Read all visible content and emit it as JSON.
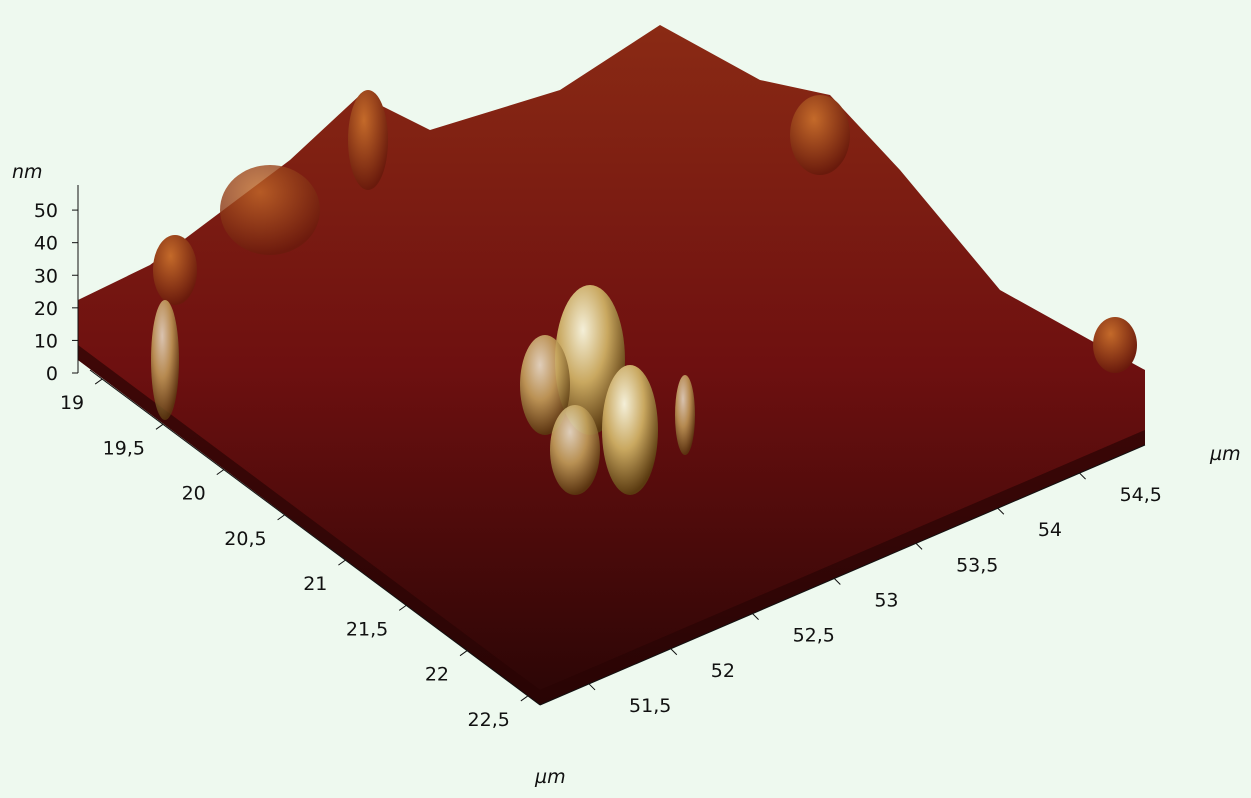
{
  "chart_data": {
    "type": "surface",
    "zlabel": "nm",
    "xlabel": "µm",
    "ylabel": "µm",
    "zlim": [
      0,
      57.7
    ],
    "zticks": [
      0,
      10,
      20,
      30,
      40,
      50
    ],
    "xlim": [
      18.9,
      22.6
    ],
    "xticks": [
      19,
      {
        "value": 19.5,
        "label": "19,5"
      },
      20,
      {
        "value": 20.5,
        "label": "20,5"
      },
      21,
      {
        "value": 21.5,
        "label": "21,5"
      },
      22,
      {
        "value": 22.5,
        "label": "22,5"
      }
    ],
    "ylim": [
      51.2,
      54.9
    ],
    "yticks": [
      {
        "value": 51.5,
        "label": "51,5"
      },
      52,
      {
        "value": 52.5,
        "label": "52,5"
      },
      53,
      {
        "value": 53.5,
        "label": "53,5"
      },
      54,
      {
        "value": 54.5,
        "label": "54,5"
      }
    ]
  }
}
